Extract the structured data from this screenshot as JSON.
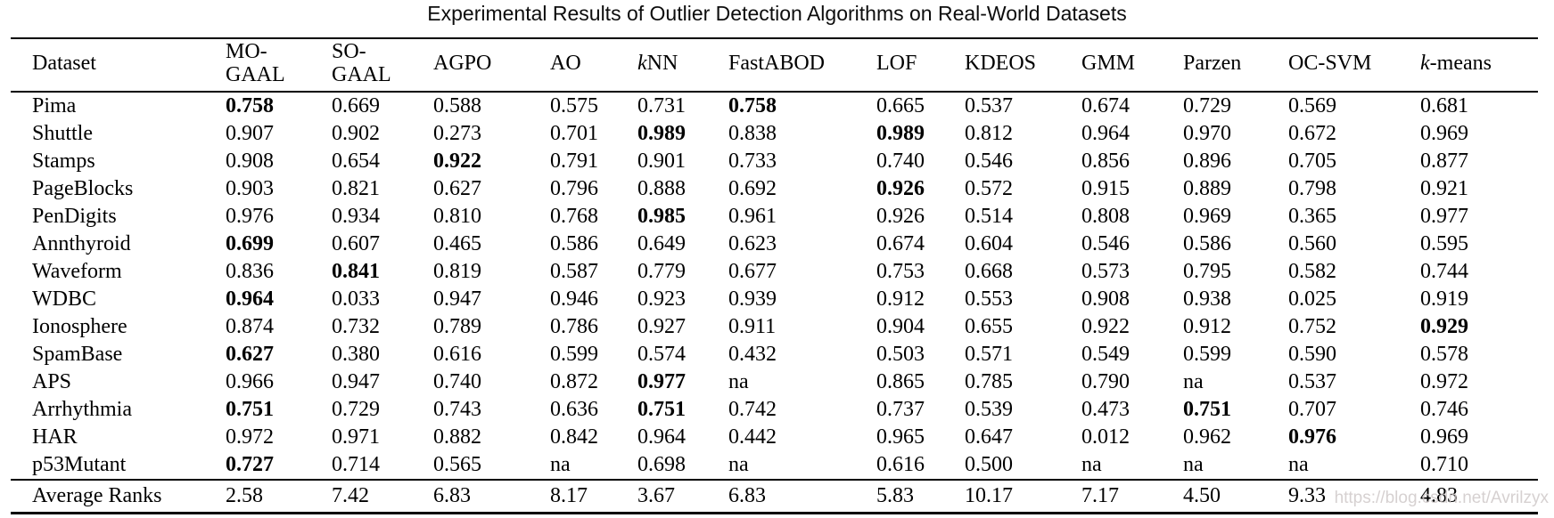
{
  "title": "Experimental Results of Outlier Detection Algorithms on Real-World Datasets",
  "watermark": "https://blog.csdn.net/Avrilzyx",
  "table": {
    "columns": [
      {
        "label": "Dataset"
      },
      {
        "label": "MO-GAAL",
        "line1": "MO-",
        "line2": "GAAL"
      },
      {
        "label": "SO-GAAL",
        "line1": "SO-",
        "line2": "GAAL"
      },
      {
        "label": "AGPO"
      },
      {
        "label": "AO"
      },
      {
        "label": "kNN",
        "italic_first": true
      },
      {
        "label": "FastABOD"
      },
      {
        "label": "LOF"
      },
      {
        "label": "KDEOS"
      },
      {
        "label": "GMM"
      },
      {
        "label": "Parzen"
      },
      {
        "label": "OC-SVM"
      },
      {
        "label": "k-means",
        "italic_first": true
      }
    ],
    "rows": [
      {
        "dataset": "Pima",
        "values": [
          "0.758",
          "0.669",
          "0.588",
          "0.575",
          "0.731",
          "0.758",
          "0.665",
          "0.537",
          "0.674",
          "0.729",
          "0.569",
          "0.681"
        ],
        "bold": [
          0,
          5
        ]
      },
      {
        "dataset": "Shuttle",
        "values": [
          "0.907",
          "0.902",
          "0.273",
          "0.701",
          "0.989",
          "0.838",
          "0.989",
          "0.812",
          "0.964",
          "0.970",
          "0.672",
          "0.969"
        ],
        "bold": [
          4,
          6
        ]
      },
      {
        "dataset": "Stamps",
        "values": [
          "0.908",
          "0.654",
          "0.922",
          "0.791",
          "0.901",
          "0.733",
          "0.740",
          "0.546",
          "0.856",
          "0.896",
          "0.705",
          "0.877"
        ],
        "bold": [
          2
        ]
      },
      {
        "dataset": "PageBlocks",
        "values": [
          "0.903",
          "0.821",
          "0.627",
          "0.796",
          "0.888",
          "0.692",
          "0.926",
          "0.572",
          "0.915",
          "0.889",
          "0.798",
          "0.921"
        ],
        "bold": [
          6
        ]
      },
      {
        "dataset": "PenDigits",
        "values": [
          "0.976",
          "0.934",
          "0.810",
          "0.768",
          "0.985",
          "0.961",
          "0.926",
          "0.514",
          "0.808",
          "0.969",
          "0.365",
          "0.977"
        ],
        "bold": [
          4
        ]
      },
      {
        "dataset": "Annthyroid",
        "values": [
          "0.699",
          "0.607",
          "0.465",
          "0.586",
          "0.649",
          "0.623",
          "0.674",
          "0.604",
          "0.546",
          "0.586",
          "0.560",
          "0.595"
        ],
        "bold": [
          0
        ]
      },
      {
        "dataset": "Waveform",
        "values": [
          "0.836",
          "0.841",
          "0.819",
          "0.587",
          "0.779",
          "0.677",
          "0.753",
          "0.668",
          "0.573",
          "0.795",
          "0.582",
          "0.744"
        ],
        "bold": [
          1
        ]
      },
      {
        "dataset": "WDBC",
        "values": [
          "0.964",
          "0.033",
          "0.947",
          "0.946",
          "0.923",
          "0.939",
          "0.912",
          "0.553",
          "0.908",
          "0.938",
          "0.025",
          "0.919"
        ],
        "bold": [
          0
        ]
      },
      {
        "dataset": "Ionosphere",
        "values": [
          "0.874",
          "0.732",
          "0.789",
          "0.786",
          "0.927",
          "0.911",
          "0.904",
          "0.655",
          "0.922",
          "0.912",
          "0.752",
          "0.929"
        ],
        "bold": [
          11
        ]
      },
      {
        "dataset": "SpamBase",
        "values": [
          "0.627",
          "0.380",
          "0.616",
          "0.599",
          "0.574",
          "0.432",
          "0.503",
          "0.571",
          "0.549",
          "0.599",
          "0.590",
          "0.578"
        ],
        "bold": [
          0
        ]
      },
      {
        "dataset": "APS",
        "values": [
          "0.966",
          "0.947",
          "0.740",
          "0.872",
          "0.977",
          "na",
          "0.865",
          "0.785",
          "0.790",
          "na",
          "0.537",
          "0.972"
        ],
        "bold": [
          4
        ]
      },
      {
        "dataset": "Arrhythmia",
        "values": [
          "0.751",
          "0.729",
          "0.743",
          "0.636",
          "0.751",
          "0.742",
          "0.737",
          "0.539",
          "0.473",
          "0.751",
          "0.707",
          "0.746"
        ],
        "bold": [
          0,
          4,
          9
        ]
      },
      {
        "dataset": "HAR",
        "values": [
          "0.972",
          "0.971",
          "0.882",
          "0.842",
          "0.964",
          "0.442",
          "0.965",
          "0.647",
          "0.012",
          "0.962",
          "0.976",
          "0.969"
        ],
        "bold": [
          10
        ]
      },
      {
        "dataset": "p53Mutant",
        "values": [
          "0.727",
          "0.714",
          "0.565",
          "na",
          "0.698",
          "na",
          "0.616",
          "0.500",
          "na",
          "na",
          "na",
          "0.710"
        ],
        "bold": [
          0
        ]
      }
    ],
    "footer": {
      "dataset": "Average Ranks",
      "values": [
        "2.58",
        "7.42",
        "6.83",
        "8.17",
        "3.67",
        "6.83",
        "5.83",
        "10.17",
        "7.17",
        "4.50",
        "9.33",
        "4.83"
      ],
      "bold": []
    }
  }
}
